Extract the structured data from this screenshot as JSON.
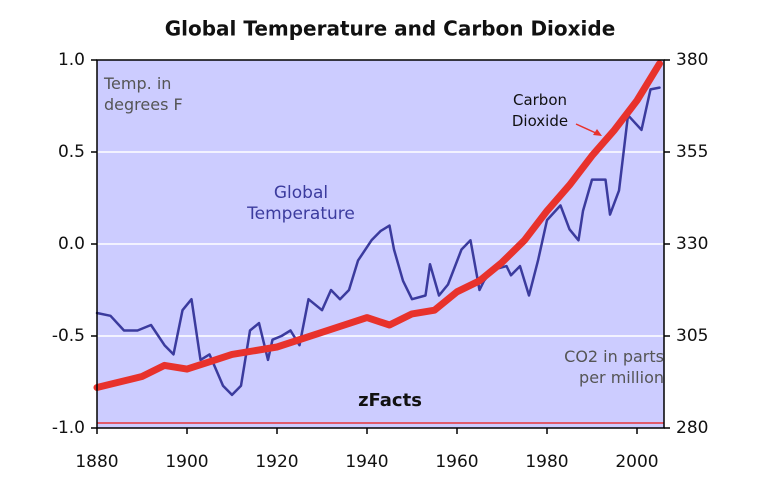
{
  "chart_data": {
    "type": "line",
    "title": "Global Temperature and Carbon Dioxide",
    "xlim": [
      1880,
      2006
    ],
    "xticks": [
      1880,
      1900,
      1920,
      1940,
      1960,
      1980,
      2000
    ],
    "ylim": [
      -1,
      1
    ],
    "yticks": [
      -1.0,
      -0.5,
      0.0,
      0.5,
      1.0
    ],
    "yticklabels": [
      "-1.0",
      "-0.5",
      "0.0",
      "0.5",
      "1.0"
    ],
    "y2lim": [
      280,
      380
    ],
    "y2ticks": [
      280,
      305,
      330,
      355,
      380
    ],
    "grid": true,
    "background": "#ccccff",
    "annotations": [
      "Temp. in degrees F",
      "CO2 in parts per million",
      "zFacts"
    ],
    "series": [
      {
        "name": "Global Temperature",
        "color": "#3b3b9e",
        "x": [
          1880,
          1883,
          1886,
          1889,
          1892,
          1895,
          1897,
          1899,
          1901,
          1903,
          1905,
          1908,
          1910,
          1912,
          1914,
          1916,
          1918,
          1919,
          1921,
          1923,
          1925,
          1927,
          1930,
          1932,
          1934,
          1936,
          1938,
          1941,
          1943,
          1945,
          1946,
          1948,
          1950,
          1953,
          1954,
          1956,
          1958,
          1961,
          1963,
          1965,
          1966,
          1968,
          1971,
          1972,
          1974,
          1976,
          1978,
          1980,
          1983,
          1985,
          1987,
          1988,
          1990,
          1993,
          1994,
          1996,
          1998,
          2001,
          2003,
          2005
        ],
        "values": [
          -0.375,
          -0.39,
          -0.47,
          -0.47,
          -0.44,
          -0.55,
          -0.6,
          -0.36,
          -0.3,
          -0.63,
          -0.6,
          -0.77,
          -0.82,
          -0.77,
          -0.47,
          -0.43,
          -0.63,
          -0.52,
          -0.5,
          -0.47,
          -0.55,
          -0.3,
          -0.36,
          -0.25,
          -0.3,
          -0.25,
          -0.09,
          0.02,
          0.07,
          0.1,
          -0.03,
          -0.2,
          -0.3,
          -0.28,
          -0.11,
          -0.28,
          -0.22,
          -0.03,
          0.02,
          -0.25,
          -0.2,
          -0.14,
          -0.12,
          -0.17,
          -0.12,
          -0.28,
          -0.09,
          0.13,
          0.21,
          0.08,
          0.02,
          0.18,
          0.35,
          0.35,
          0.16,
          0.29,
          0.7,
          0.62,
          0.84,
          0.85
        ]
      },
      {
        "name": "Carbon Dioxide",
        "color": "#e8322c",
        "axis": "y2",
        "x": [
          1880,
          1890,
          1895,
          1900,
          1905,
          1910,
          1920,
          1930,
          1940,
          1945,
          1950,
          1955,
          1960,
          1965,
          1970,
          1975,
          1980,
          1985,
          1990,
          1995,
          2000,
          2005
        ],
        "values": [
          291,
          294,
          297,
          296,
          298,
          300,
          302,
          306,
          310,
          308,
          311,
          312,
          317,
          320,
          325,
          331,
          339,
          346,
          354,
          361,
          369,
          379
        ]
      }
    ]
  }
}
